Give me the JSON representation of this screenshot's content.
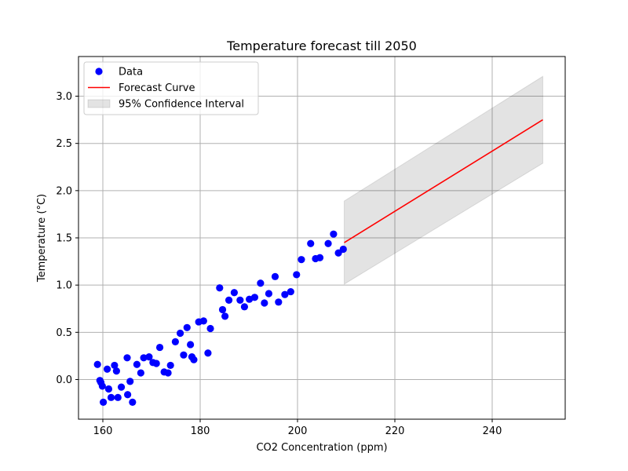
{
  "chart_data": {
    "type": "scatter",
    "title": "Temperature forecast till 2050",
    "xlabel": "CO2 Concentration (ppm)",
    "ylabel": "Temperature (°C)",
    "xlim": [
      155,
      255
    ],
    "ylim": [
      -0.42,
      3.42
    ],
    "xticks": [
      160,
      180,
      200,
      220,
      240
    ],
    "yticks": [
      0.0,
      0.5,
      1.0,
      1.5,
      2.0,
      2.5,
      3.0
    ],
    "xtick_labels": [
      "160",
      "180",
      "200",
      "220",
      "240"
    ],
    "ytick_labels": [
      "0.0",
      "0.5",
      "1.0",
      "1.5",
      "2.0",
      "2.5",
      "3.0"
    ],
    "grid": true,
    "legend_placement": "top-left",
    "legend": [
      {
        "label": "Data",
        "kind": "marker",
        "color": "#0000ff"
      },
      {
        "label": "Forecast Curve",
        "kind": "line",
        "color": "#ff0000"
      },
      {
        "label": "95% Confidence Interval",
        "kind": "patch",
        "color": "#d9d9d9"
      }
    ],
    "series": [
      {
        "name": "Data",
        "kind": "scatter",
        "color": "#0000ff",
        "points": [
          [
            158.9,
            0.16
          ],
          [
            159.4,
            -0.01
          ],
          [
            159.6,
            -0.03
          ],
          [
            159.9,
            -0.07
          ],
          [
            160.1,
            -0.24
          ],
          [
            160.9,
            0.11
          ],
          [
            161.2,
            -0.1
          ],
          [
            161.7,
            -0.19
          ],
          [
            162.4,
            0.15
          ],
          [
            162.8,
            0.09
          ],
          [
            163.1,
            -0.19
          ],
          [
            163.8,
            -0.08
          ],
          [
            165.0,
            0.23
          ],
          [
            165.1,
            -0.16
          ],
          [
            165.6,
            -0.02
          ],
          [
            166.1,
            -0.24
          ],
          [
            167.0,
            0.16
          ],
          [
            167.8,
            0.07
          ],
          [
            168.4,
            0.23
          ],
          [
            169.5,
            0.24
          ],
          [
            170.3,
            0.18
          ],
          [
            171.0,
            0.17
          ],
          [
            171.7,
            0.34
          ],
          [
            172.6,
            0.08
          ],
          [
            173.4,
            0.07
          ],
          [
            173.9,
            0.15
          ],
          [
            174.9,
            0.4
          ],
          [
            175.9,
            0.49
          ],
          [
            176.6,
            0.26
          ],
          [
            177.3,
            0.55
          ],
          [
            178.0,
            0.37
          ],
          [
            178.3,
            0.24
          ],
          [
            178.7,
            0.21
          ],
          [
            179.7,
            0.61
          ],
          [
            180.7,
            0.62
          ],
          [
            181.6,
            0.28
          ],
          [
            182.1,
            0.54
          ],
          [
            184.0,
            0.97
          ],
          [
            184.6,
            0.74
          ],
          [
            185.1,
            0.67
          ],
          [
            185.9,
            0.84
          ],
          [
            187.0,
            0.92
          ],
          [
            188.2,
            0.84
          ],
          [
            189.1,
            0.77
          ],
          [
            190.1,
            0.85
          ],
          [
            191.2,
            0.87
          ],
          [
            192.4,
            1.02
          ],
          [
            193.2,
            0.81
          ],
          [
            194.1,
            0.91
          ],
          [
            195.4,
            1.09
          ],
          [
            196.1,
            0.82
          ],
          [
            197.4,
            0.9
          ],
          [
            198.6,
            0.93
          ],
          [
            199.8,
            1.11
          ],
          [
            200.8,
            1.27
          ],
          [
            202.7,
            1.44
          ],
          [
            203.7,
            1.28
          ],
          [
            204.6,
            1.29
          ],
          [
            206.3,
            1.44
          ],
          [
            207.4,
            1.54
          ],
          [
            208.4,
            1.34
          ],
          [
            209.4,
            1.38
          ]
        ]
      },
      {
        "name": "Forecast Curve",
        "kind": "line",
        "color": "#ff0000",
        "x": [
          209.6,
          250.4
        ],
        "y": [
          1.45,
          2.75
        ]
      },
      {
        "name": "95% Confidence Interval",
        "kind": "band",
        "color": "#d9d9d9",
        "x": [
          209.6,
          250.4
        ],
        "lower": [
          1.01,
          2.29
        ],
        "upper": [
          1.89,
          3.21
        ]
      }
    ]
  }
}
